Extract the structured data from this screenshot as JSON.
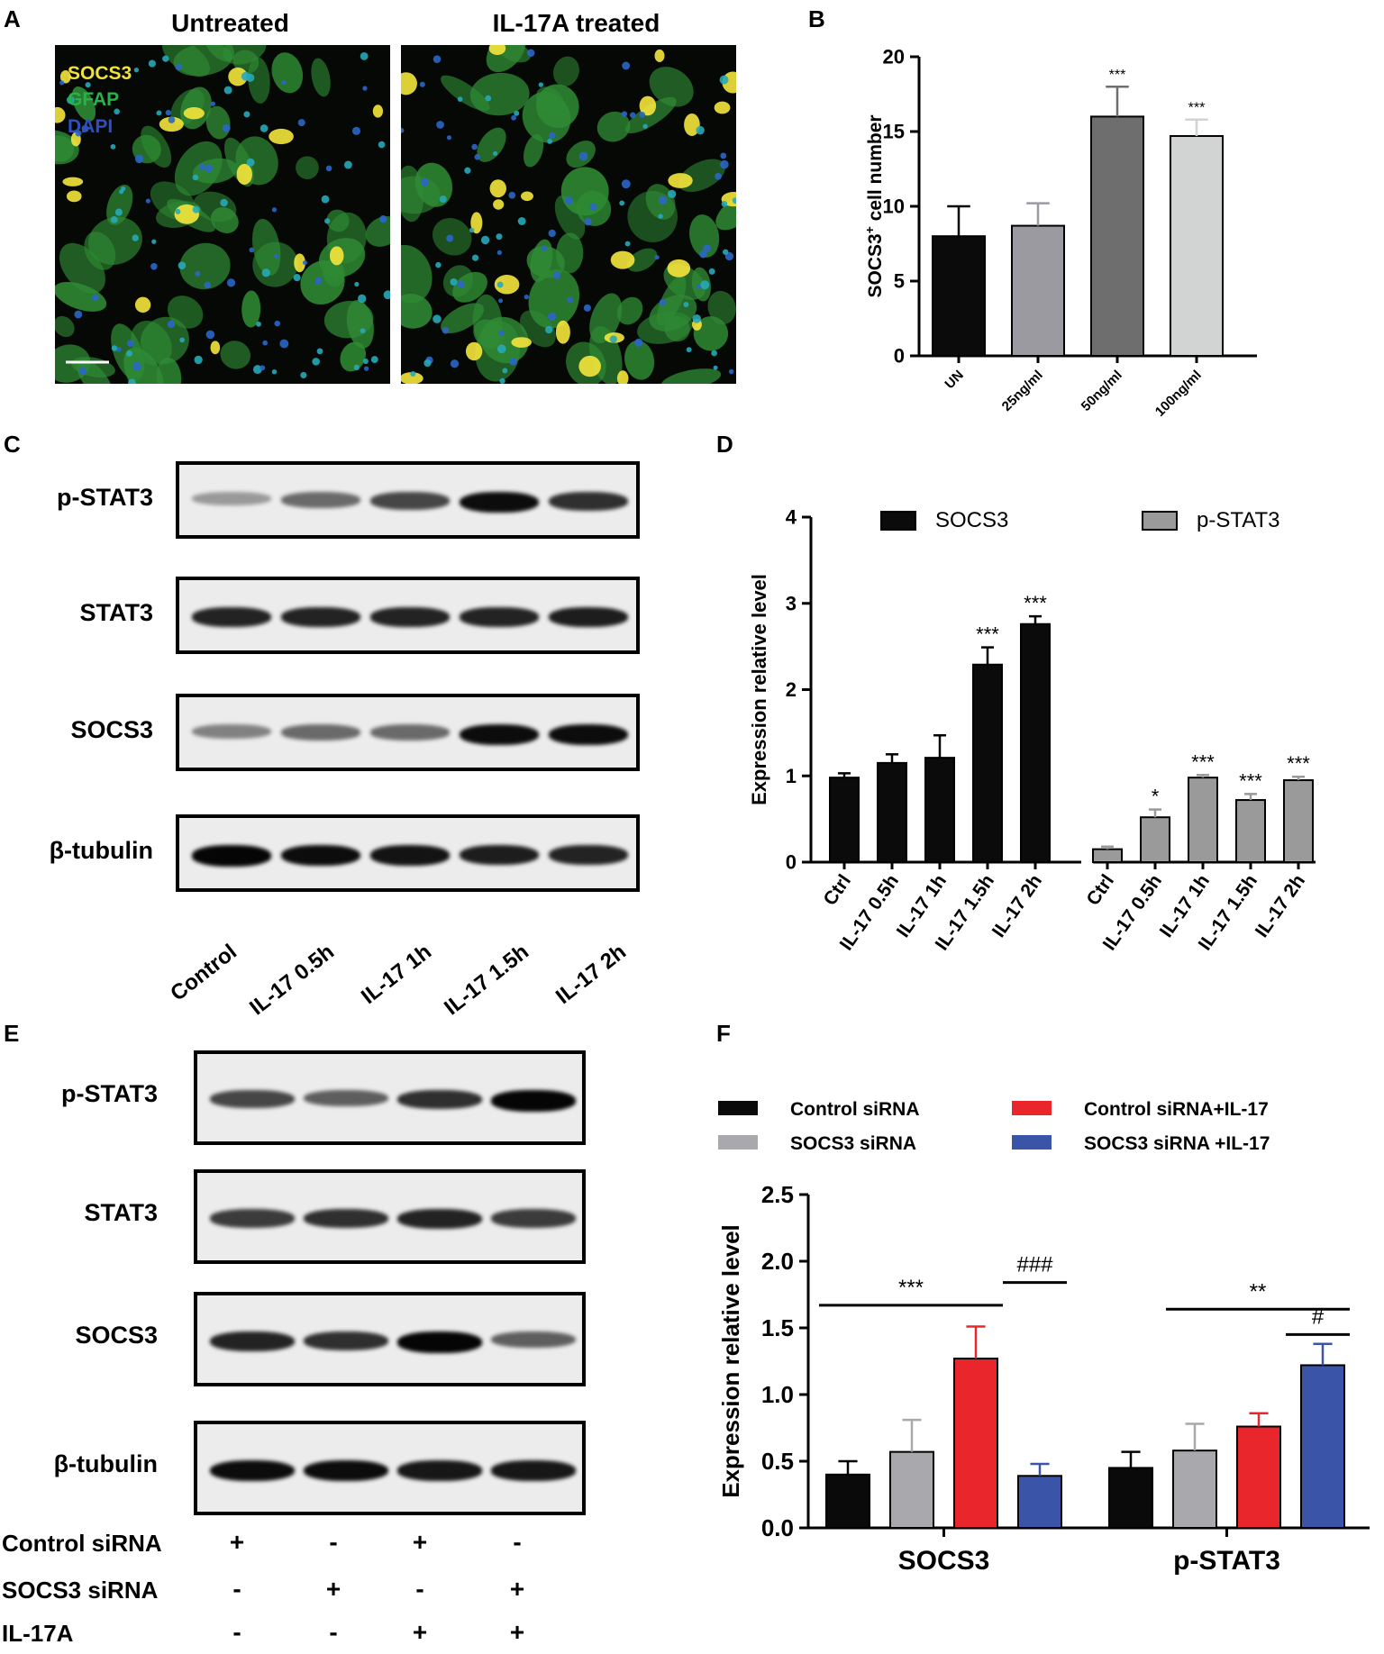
{
  "panels": {
    "A": {
      "label": "A",
      "titles": [
        "Untreated",
        "IL-17A treated"
      ],
      "legend": [
        {
          "text": "SOCS3",
          "color": "#f2e13a"
        },
        {
          "text": "GFAP",
          "color": "#27b24a"
        },
        {
          "text": "DAPI",
          "color": "#2f4fc0"
        }
      ]
    },
    "B": {
      "label": "B"
    },
    "C": {
      "label": "C",
      "rows": [
        "p-STAT3",
        "STAT3",
        "SOCS3",
        "β-tubulin"
      ],
      "lanes": [
        "Control",
        "IL-17 0.5h",
        "IL-17 1h",
        "IL-17 1.5h",
        "IL-17 2h"
      ]
    },
    "D": {
      "label": "D"
    },
    "E": {
      "label": "E",
      "rows": [
        "p-STAT3",
        "STAT3",
        "SOCS3",
        "β-tubulin"
      ],
      "treatments": [
        {
          "name": "Control siRNA",
          "signs": [
            "+",
            "-",
            "+",
            "-"
          ]
        },
        {
          "name": "SOCS3  siRNA",
          "signs": [
            "-",
            "+",
            "-",
            "+"
          ]
        },
        {
          "name": "IL-17A",
          "signs": [
            "-",
            "-",
            "+",
            "+"
          ]
        }
      ]
    },
    "F": {
      "label": "F"
    }
  },
  "chart_data": [
    {
      "panel": "B",
      "type": "bar",
      "categories": [
        "UN",
        "25ng/ml",
        "50ng/ml",
        "100ng/ml"
      ],
      "values": [
        8.0,
        8.7,
        16.0,
        14.7
      ],
      "errors": [
        2.0,
        1.5,
        2.0,
        1.1
      ],
      "significance": [
        "",
        "",
        "***",
        "***"
      ],
      "colors": [
        "#0b0b0b",
        "#9a9aa0",
        "#6e6e6e",
        "#d2d3d3"
      ],
      "ylabel": "SOCS3+ cell number",
      "ylabel_main": "SOCS3",
      "ylabel_sup": "+",
      "ylabel_rest": " cell number",
      "ylim": [
        0,
        20
      ],
      "yticks": [
        "0",
        "5",
        "10",
        "15",
        "20"
      ]
    },
    {
      "panel": "D",
      "type": "bar",
      "categories": [
        "Ctrl",
        "IL-17 0.5h",
        "IL-17 1h",
        "IL-17 1.5h",
        "IL-17 2h"
      ],
      "series": [
        {
          "name": "SOCS3",
          "values": [
            0.98,
            1.15,
            1.21,
            2.29,
            2.76
          ],
          "errors": [
            0.05,
            0.1,
            0.26,
            0.2,
            0.09
          ],
          "significance": [
            "",
            "",
            "",
            "***",
            "***"
          ],
          "color": "#0b0b0b"
        },
        {
          "name": "p-STAT3",
          "values": [
            0.15,
            0.52,
            0.98,
            0.72,
            0.95
          ],
          "errors": [
            0.03,
            0.09,
            0.03,
            0.07,
            0.04
          ],
          "significance": [
            "",
            "*",
            "***",
            "***",
            "***"
          ],
          "color": "#9a9a9a"
        }
      ],
      "ylabel": "Expression relative  level",
      "ylim": [
        0,
        4
      ],
      "yticks": [
        "0",
        "1",
        "2",
        "3",
        "4"
      ],
      "legend_position": "top"
    },
    {
      "panel": "F",
      "type": "bar",
      "categories": [
        "SOCS3",
        "p-STAT3"
      ],
      "series": [
        {
          "name": "Control siRNA",
          "values": [
            0.4,
            0.45
          ],
          "errors": [
            0.1,
            0.12
          ],
          "color": "#0a0a0a"
        },
        {
          "name": "SOCS3 siRNA",
          "values": [
            0.57,
            0.58
          ],
          "errors": [
            0.24,
            0.2
          ],
          "color": "#a9a9ad"
        },
        {
          "name": "Control siRNA+IL-17",
          "values": [
            1.27,
            0.76
          ],
          "errors": [
            0.24,
            0.1
          ],
          "color": "#e8262c"
        },
        {
          "name": "SOCS3 siRNA +IL-17",
          "values": [
            0.39,
            1.22
          ],
          "errors": [
            0.09,
            0.16
          ],
          "color": "#3a55a8"
        }
      ],
      "significance": [
        {
          "group": 0,
          "from": 0,
          "to": 2,
          "label": "***",
          "level": 1.67
        },
        {
          "group": 0,
          "from": 2,
          "to": 3,
          "label": "###",
          "level": 1.84
        },
        {
          "group": 1,
          "from": 1,
          "to": 3,
          "label": "**",
          "level": 1.64
        },
        {
          "group": 1,
          "from": 2,
          "to": 3,
          "label": "#",
          "level": 1.45
        }
      ],
      "ylabel": "Expression relative  level",
      "ylim": [
        0,
        2.5
      ],
      "yticks": [
        "0.0",
        "0.5",
        "1.0",
        "1.5",
        "2.0",
        "2.5"
      ],
      "legend_position": "top"
    }
  ]
}
